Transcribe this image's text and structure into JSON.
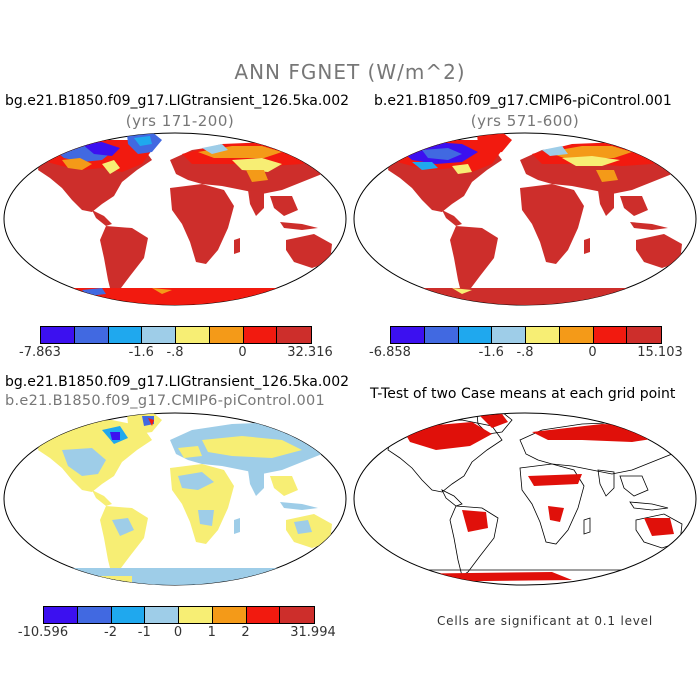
{
  "main_title": "ANN FGNET (W/m^2)",
  "colors": {
    "deep_purple": "#3c10f0",
    "royal_blue": "#4169e1",
    "sky_blue": "#1fa8ee",
    "light_blue": "#9ecde8",
    "light_yellow": "#f7ee74",
    "orange": "#f49a18",
    "red": "#f21a0f",
    "dark_red": "#cd2e2b",
    "ocean": "#ffffff",
    "sig_red": "#e0100a"
  },
  "panels": {
    "top_left": {
      "title": "bg.e21.B1850.f09_g17.LIGtransient_126.5ka.002",
      "subtitle": "(yrs 171-200)",
      "colorbar": {
        "colors": [
          "#3c10f0",
          "#4169e1",
          "#1fa8ee",
          "#9ecde8",
          "#f7ee74",
          "#f49a18",
          "#f21a0f",
          "#cd2e2b"
        ],
        "labels": [
          {
            "text": "-7.863",
            "pos": 0.0
          },
          {
            "text": "-1.6",
            "pos": 0.375
          },
          {
            "text": "-.8",
            "pos": 0.5
          },
          {
            "text": "0",
            "pos": 0.75
          },
          {
            "text": "32.316",
            "pos": 1.0
          }
        ]
      }
    },
    "top_right": {
      "title": "b.e21.B1850.f09_g17.CMIP6-piControl.001",
      "subtitle": "(yrs 571-600)",
      "colorbar": {
        "colors": [
          "#3c10f0",
          "#4169e1",
          "#1fa8ee",
          "#9ecde8",
          "#f7ee74",
          "#f49a18",
          "#f21a0f",
          "#cd2e2b"
        ],
        "labels": [
          {
            "text": "-6.858",
            "pos": 0.0
          },
          {
            "text": "-1.6",
            "pos": 0.375
          },
          {
            "text": "-.8",
            "pos": 0.5
          },
          {
            "text": "0",
            "pos": 0.75
          },
          {
            "text": "15.103",
            "pos": 1.0
          }
        ]
      }
    },
    "bottom_left": {
      "title": "bg.e21.B1850.f09_g17.LIGtransient_126.5ka.002",
      "subtitle": "b.e21.B1850.f09_g17.CMIP6-piControl.001",
      "colorbar": {
        "colors": [
          "#3c10f0",
          "#4169e1",
          "#1fa8ee",
          "#9ecde8",
          "#f7ee74",
          "#f49a18",
          "#f21a0f",
          "#cd2e2b"
        ],
        "labels": [
          {
            "text": "-10.596",
            "pos": 0.0
          },
          {
            "text": "-2",
            "pos": 0.25
          },
          {
            "text": "-1",
            "pos": 0.375
          },
          {
            "text": "0",
            "pos": 0.5
          },
          {
            "text": "1",
            "pos": 0.625
          },
          {
            "text": "2",
            "pos": 0.75
          },
          {
            "text": "31.994",
            "pos": 1.0
          }
        ]
      }
    },
    "bottom_right": {
      "title": "T-Test of two Case means at each grid point",
      "note": "Cells are significant at 0.1 level"
    }
  }
}
